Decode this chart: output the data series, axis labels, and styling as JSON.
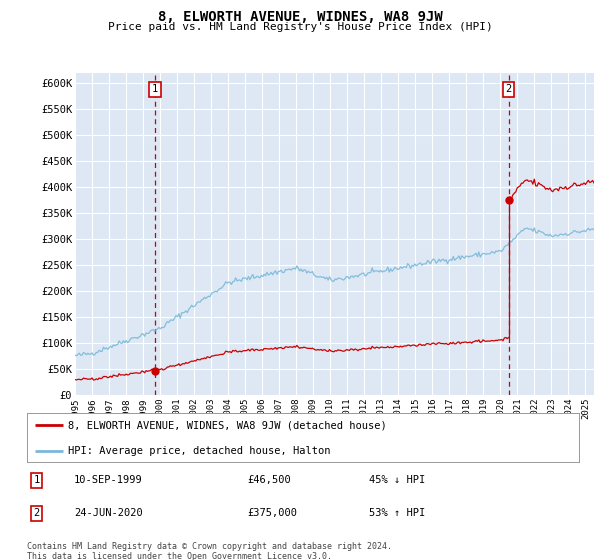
{
  "title": "8, ELWORTH AVENUE, WIDNES, WA8 9JW",
  "subtitle": "Price paid vs. HM Land Registry's House Price Index (HPI)",
  "ylabel_ticks": [
    "£0",
    "£50K",
    "£100K",
    "£150K",
    "£200K",
    "£250K",
    "£300K",
    "£350K",
    "£400K",
    "£450K",
    "£500K",
    "£550K",
    "£600K"
  ],
  "ylim": [
    0,
    620000
  ],
  "yticks": [
    0,
    50000,
    100000,
    150000,
    200000,
    250000,
    300000,
    350000,
    400000,
    450000,
    500000,
    550000,
    600000
  ],
  "xlim_start": 1995.0,
  "xlim_end": 2025.5,
  "xticks": [
    1995,
    1996,
    1997,
    1998,
    1999,
    2000,
    2001,
    2002,
    2003,
    2004,
    2005,
    2006,
    2007,
    2008,
    2009,
    2010,
    2011,
    2012,
    2013,
    2014,
    2015,
    2016,
    2017,
    2018,
    2019,
    2020,
    2021,
    2022,
    2023,
    2024,
    2025
  ],
  "sale1_x": 1999.69,
  "sale1_y": 46500,
  "sale2_x": 2020.48,
  "sale2_y": 375000,
  "sale1_label": "1",
  "sale2_label": "2",
  "sale1_date": "10-SEP-1999",
  "sale1_price": "£46,500",
  "sale1_hpi": "45% ↓ HPI",
  "sale2_date": "24-JUN-2020",
  "sale2_price": "£375,000",
  "sale2_hpi": "53% ↑ HPI",
  "hpi_color": "#7ab8d9",
  "sale_color": "#cc0000",
  "vline_color": "#cc0000",
  "bg_color": "#dde8f4",
  "grid_color": "#ffffff",
  "legend_label_sale": "8, ELWORTH AVENUE, WIDNES, WA8 9JW (detached house)",
  "legend_label_hpi": "HPI: Average price, detached house, Halton",
  "footnote": "Contains HM Land Registry data © Crown copyright and database right 2024.\nThis data is licensed under the Open Government Licence v3.0."
}
